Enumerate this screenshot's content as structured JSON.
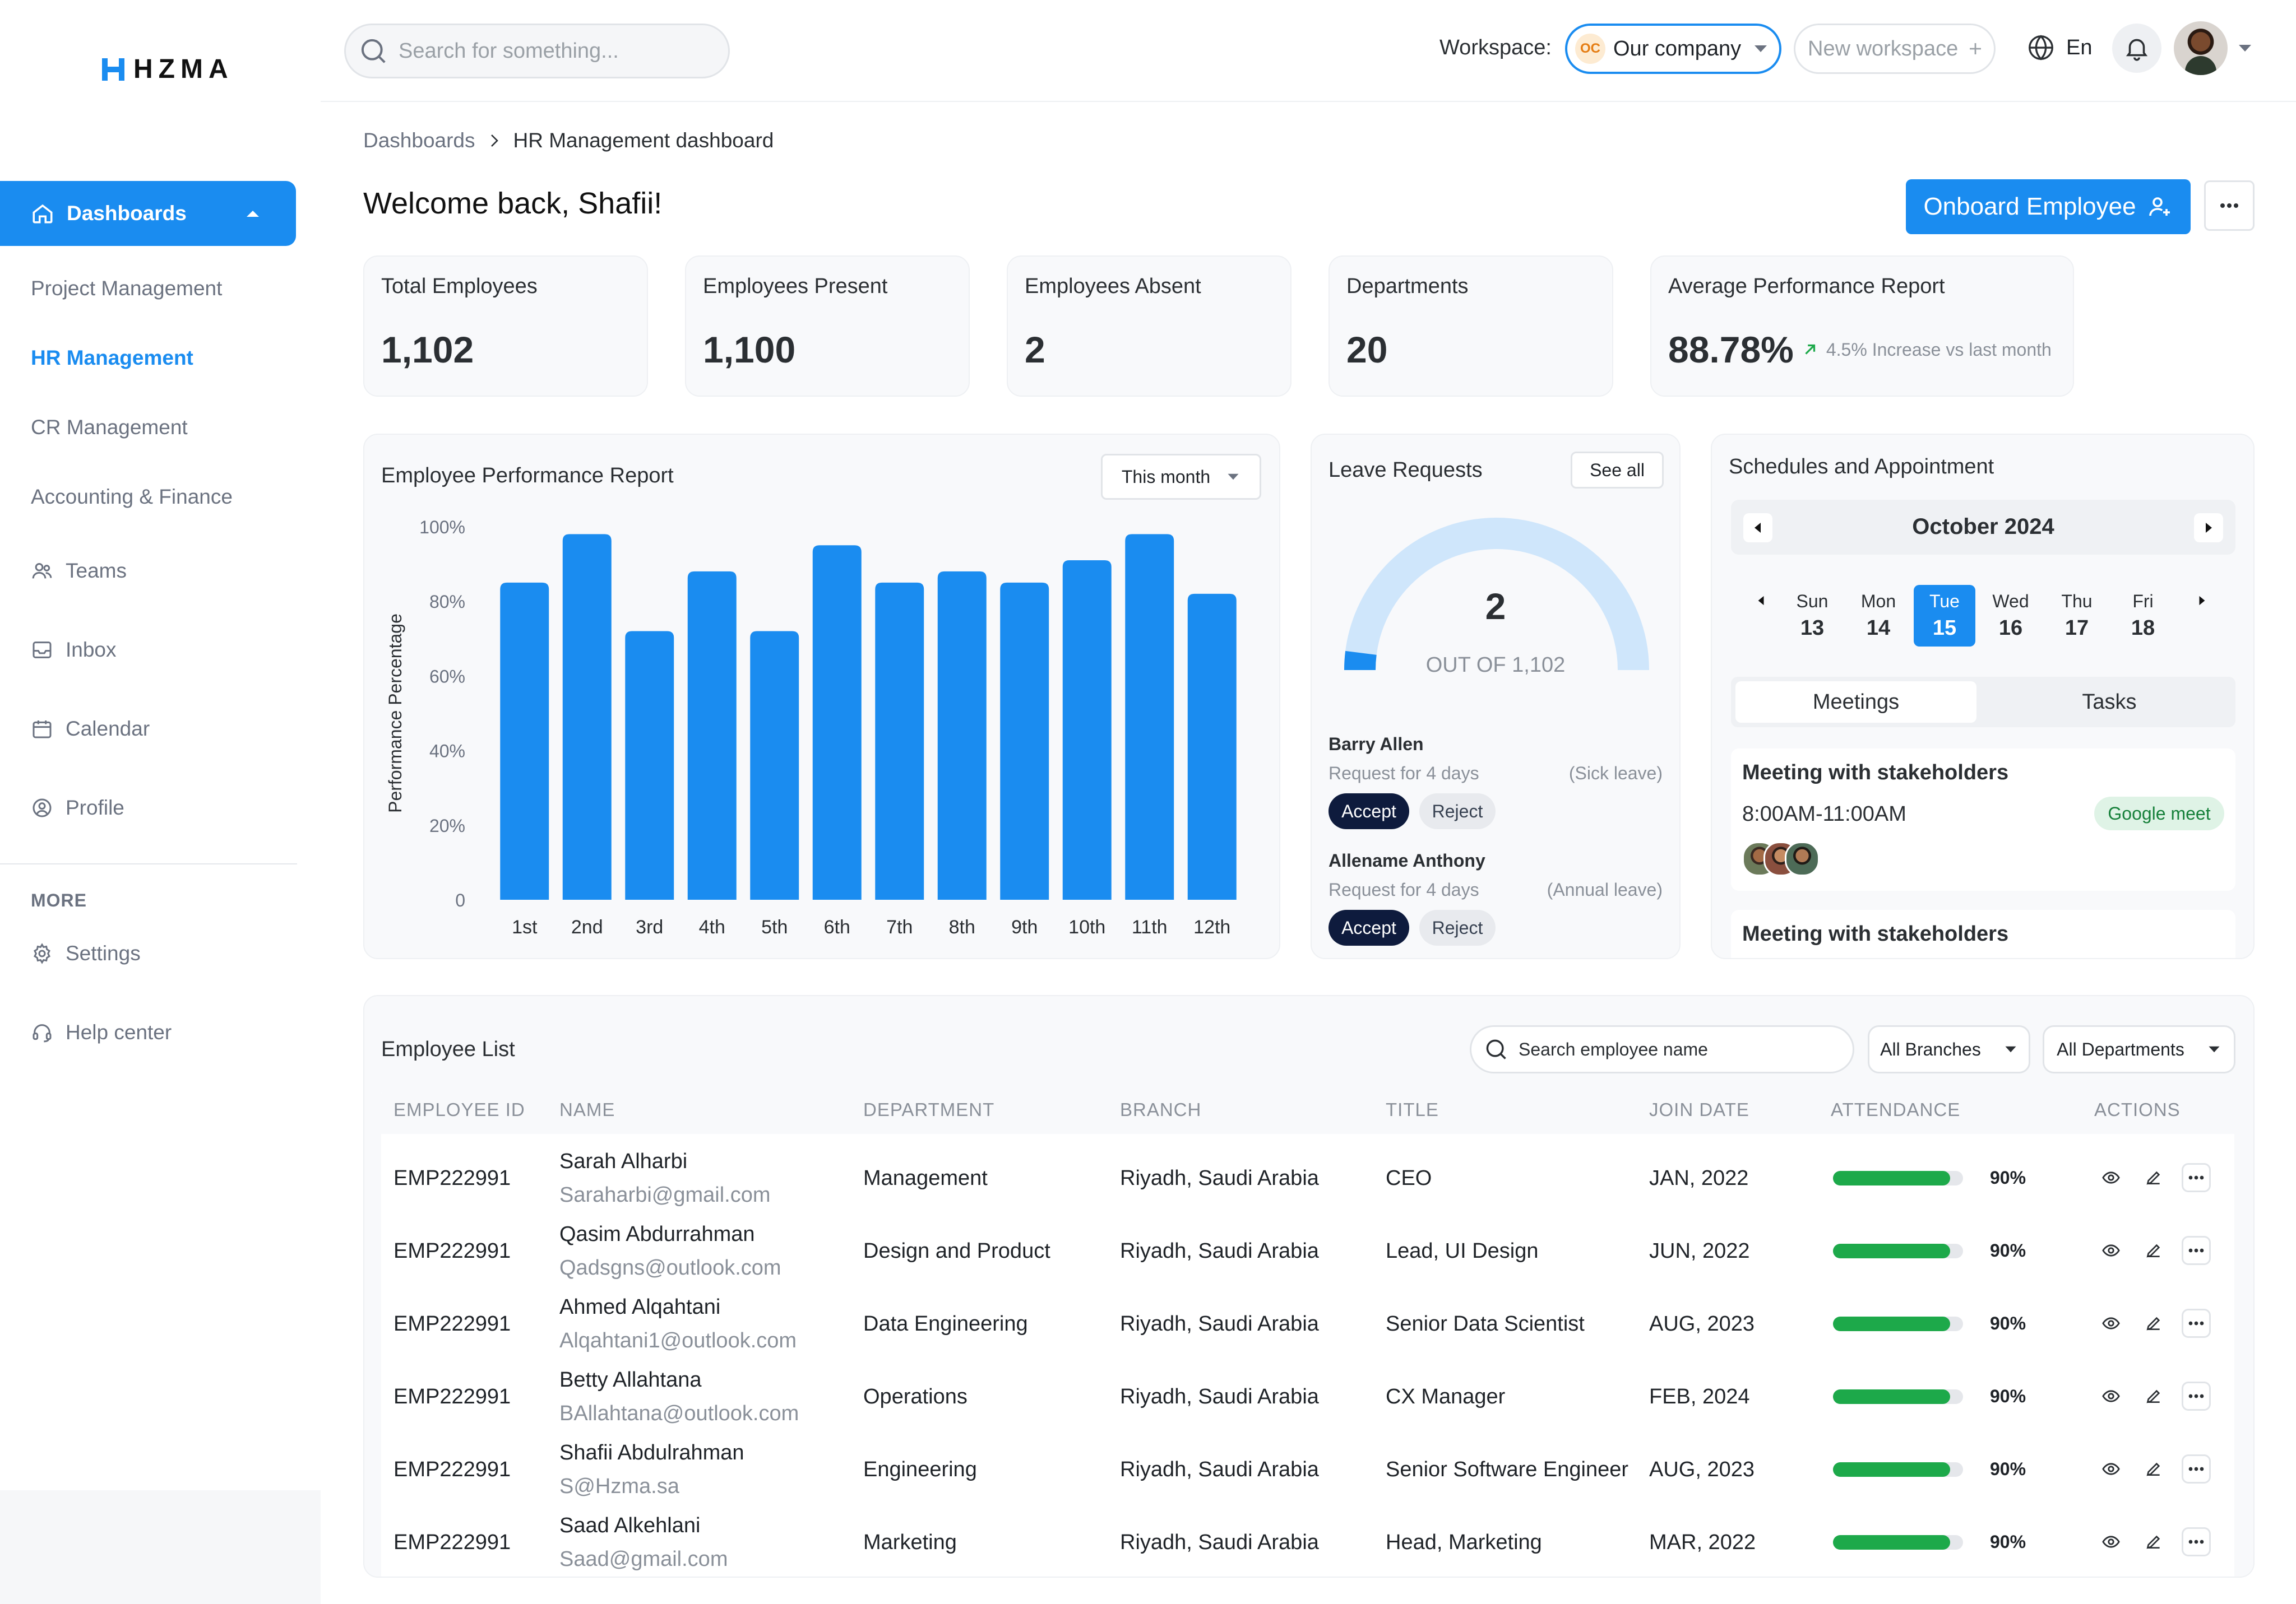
{
  "brand": {
    "logo_text": "HZMA"
  },
  "sidebar": {
    "active": "Dashboards",
    "items": [
      "Project Management",
      "HR Management",
      "CR Management",
      "Accounting & Finance"
    ],
    "nav": [
      {
        "label": "Teams",
        "icon": "teams-icon"
      },
      {
        "label": "Inbox",
        "icon": "inbox-icon"
      },
      {
        "label": "Calendar",
        "icon": "calendar-icon"
      },
      {
        "label": "Profile",
        "icon": "profile-icon"
      }
    ],
    "more_heading": "MORE",
    "more": [
      {
        "label": "Settings",
        "icon": "gear-icon"
      },
      {
        "label": "Help center",
        "icon": "headset-icon"
      }
    ]
  },
  "header": {
    "search_placeholder": "Search for something...",
    "workspace_label": "Workspace:",
    "workspace_badge": "OC",
    "workspace_name": "Our company",
    "new_workspace": "New workspace",
    "language": "En"
  },
  "breadcrumb": {
    "parent": "Dashboards",
    "current": "HR Management dashboard"
  },
  "welcome": "Welcome back, Shafii!",
  "onboard_button": "Onboard Employee",
  "stats": [
    {
      "label": "Total Employees",
      "value": "1,102"
    },
    {
      "label": "Employees Present",
      "value": "1,100"
    },
    {
      "label": "Employees Absent",
      "value": "2"
    },
    {
      "label": "Departments",
      "value": "20"
    }
  ],
  "avg_perf": {
    "label": "Average Performance Report",
    "value": "88.78%",
    "trend": "4.5% Increase vs last month"
  },
  "perf_chart": {
    "title": "Employee Performance Report",
    "filter": "This month",
    "ylabel": "Performance Percentage",
    "y_ticks": [
      "100%",
      "80%",
      "60%",
      "40%",
      "20%",
      "0"
    ],
    "colors": {
      "bar": "#1a8cf0"
    }
  },
  "chart_data": {
    "type": "bar",
    "categories": [
      "1st",
      "2nd",
      "3rd",
      "4th",
      "5th",
      "6th",
      "7th",
      "8th",
      "9th",
      "10th",
      "11th",
      "12th"
    ],
    "values": [
      85,
      98,
      72,
      88,
      72,
      95,
      85,
      88,
      85,
      91,
      98,
      82
    ],
    "title": "Employee Performance Report",
    "ylabel": "Performance Percentage",
    "ylim": [
      0,
      100
    ]
  },
  "leave": {
    "title": "Leave Requests",
    "see_all": "See all",
    "count": "2",
    "out_of": "OUT OF 1,102",
    "gauge_fraction": 0.0018,
    "requests": [
      {
        "name": "Barry Allen",
        "duration": "Request for 4 days",
        "type": "(Sick leave)",
        "accept": "Accept",
        "reject": "Reject"
      },
      {
        "name": "Allename Anthony",
        "duration": "Request for 4 days",
        "type": "(Annual leave)",
        "accept": "Accept",
        "reject": "Reject"
      }
    ]
  },
  "schedule": {
    "title": "Schedules and Appointment",
    "month": "October 2024",
    "days": [
      {
        "dow": "Sun",
        "num": "13"
      },
      {
        "dow": "Mon",
        "num": "14"
      },
      {
        "dow": "Tue",
        "num": "15",
        "selected": true
      },
      {
        "dow": "Wed",
        "num": "16"
      },
      {
        "dow": "Thu",
        "num": "17"
      },
      {
        "dow": "Fri",
        "num": "18"
      }
    ],
    "tabs": [
      "Meetings",
      "Tasks"
    ],
    "meetings": [
      {
        "title": "Meeting with stakeholders",
        "time": "8:00AM-11:00AM",
        "tag": "Google meet"
      },
      {
        "title": "Meeting with stakeholders"
      }
    ]
  },
  "employee_list": {
    "title": "Employee List",
    "search_placeholder": "Search employee name",
    "branch_filter": "All Branches",
    "dept_filter": "All Departments",
    "columns": [
      "EMPLOYEE ID",
      "NAME",
      "DEPARTMENT",
      "BRANCH",
      "TITLE",
      "JOIN DATE",
      "ATTENDANCE",
      "ACTIONS"
    ],
    "rows": [
      {
        "id": "EMP222991",
        "name": "Sarah Alharbi",
        "email": "Saraharbi@gmail.com",
        "dept": "Management",
        "branch": "Riyadh, Saudi Arabia",
        "title": "CEO",
        "join": "JAN, 2022",
        "attendance": "90%",
        "attendance_value": 90
      },
      {
        "id": "EMP222991",
        "name": "Qasim Abdurrahman",
        "email": "Qadsgns@outlook.com",
        "dept": "Design and Product",
        "branch": "Riyadh, Saudi Arabia",
        "title": "Lead, UI Design",
        "join": "JUN, 2022",
        "attendance": "90%",
        "attendance_value": 90
      },
      {
        "id": "EMP222991",
        "name": "Ahmed Alqahtani",
        "email": "Alqahtani1@outlook.com",
        "dept": "Data Engineering",
        "branch": "Riyadh, Saudi Arabia",
        "title": "Senior Data Scientist",
        "join": "AUG, 2023",
        "attendance": "90%",
        "attendance_value": 90
      },
      {
        "id": "EMP222991",
        "name": "Betty Allahtana",
        "email": "BAllahtana@outlook.com",
        "dept": "Operations",
        "branch": "Riyadh, Saudi Arabia",
        "title": "CX Manager",
        "join": "FEB, 2024",
        "attendance": "90%",
        "attendance_value": 90
      },
      {
        "id": "EMP222991",
        "name": "Shafii Abdulrahman",
        "email": "S@Hzma.sa",
        "dept": "Engineering",
        "branch": "Riyadh, Saudi Arabia",
        "title": "Senior Software Engineer",
        "join": "AUG, 2023",
        "attendance": "90%",
        "attendance_value": 90
      },
      {
        "id": "EMP222991",
        "name": "Saad Alkehlani",
        "email": "Saad@gmail.com",
        "dept": "Marketing",
        "branch": "Riyadh, Saudi Arabia",
        "title": "Head, Marketing",
        "join": "MAR, 2022",
        "attendance": "90%",
        "attendance_value": 90
      }
    ]
  },
  "colors": {
    "accent": "#1a8cf0",
    "dark": "#0e1b3d",
    "success": "#1da94a",
    "gauge_track": "#cfe6fb"
  }
}
